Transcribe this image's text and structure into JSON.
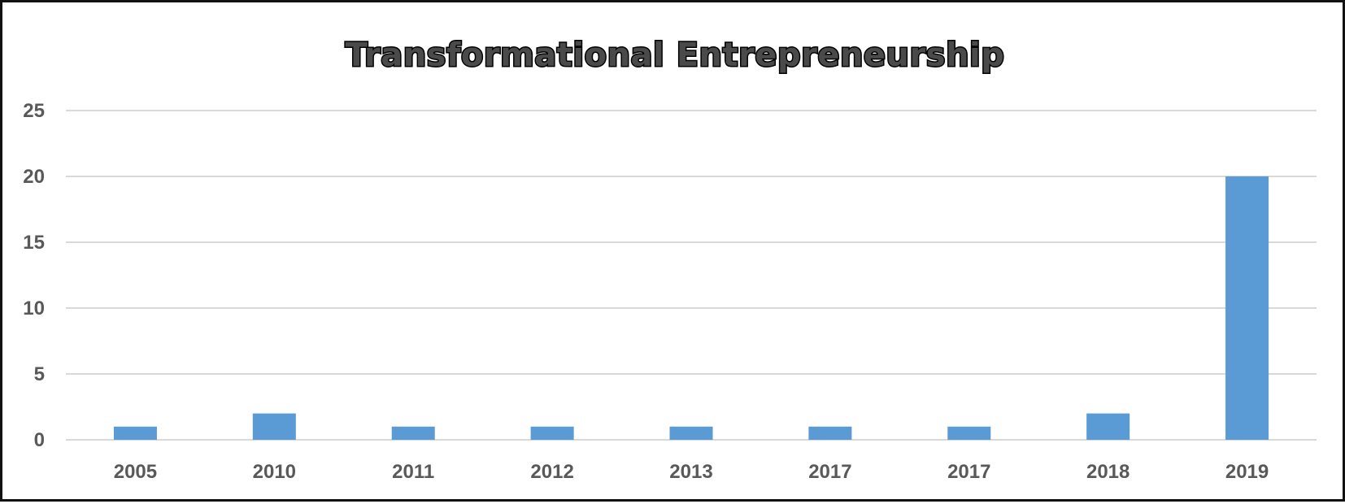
{
  "chart_data": {
    "type": "bar",
    "title": "Transformational Entrepreneurship",
    "xlabel": "",
    "ylabel": "",
    "categories": [
      "2005",
      "2010",
      "2011",
      "2012",
      "2013",
      "2017",
      "2017",
      "2018",
      "2019"
    ],
    "values": [
      1,
      2,
      1,
      1,
      1,
      1,
      1,
      2,
      20
    ],
    "ylim": [
      0,
      25
    ],
    "yticks": [
      0,
      5,
      10,
      15,
      20,
      25
    ],
    "grid": true,
    "legend": "none",
    "bar_color": "#5b9bd5",
    "grid_color": "#d9d9d9",
    "title_fill_color": "#4a4a4a",
    "tick_label_color": "#595959"
  }
}
